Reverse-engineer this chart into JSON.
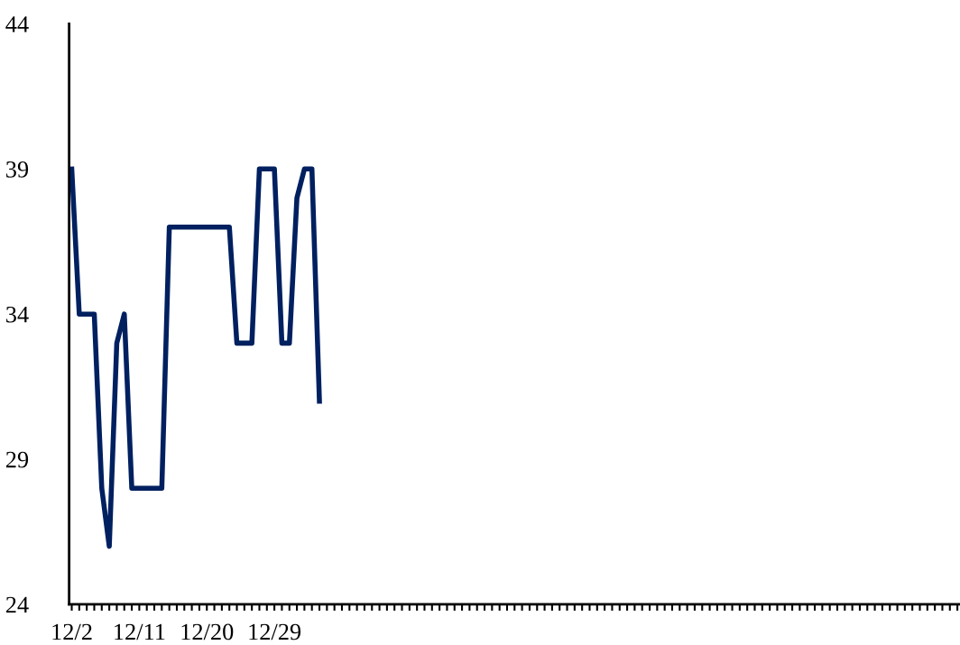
{
  "chart_data": {
    "type": "line",
    "categories": [
      "12/2",
      null,
      null,
      null,
      null,
      null,
      null,
      null,
      null,
      "12/11",
      null,
      null,
      null,
      null,
      null,
      null,
      null,
      null,
      "12/20",
      null,
      null,
      null,
      null,
      null,
      null,
      null,
      null,
      "12/29",
      null,
      null,
      null,
      null,
      null,
      null,
      null,
      null,
      null,
      null,
      null,
      null,
      null,
      null,
      null,
      null,
      null,
      null,
      null,
      null,
      null,
      null,
      null,
      null,
      null,
      null,
      null,
      null,
      null,
      null,
      null,
      null,
      null,
      null,
      null,
      null,
      null,
      null,
      null,
      null,
      null,
      null,
      null,
      null,
      null,
      null,
      null,
      null,
      null,
      null,
      null,
      null,
      null,
      null,
      null,
      null,
      null,
      null,
      null,
      null,
      null,
      null,
      null,
      null,
      null,
      null,
      null,
      null,
      null,
      null,
      null,
      null,
      null,
      null,
      null,
      null,
      null,
      null,
      null,
      null,
      null,
      null,
      null,
      null,
      null,
      null,
      null,
      null,
      null,
      null,
      null
    ],
    "series": [
      {
        "color": "#002060",
        "values": [
          39,
          34,
          34,
          34,
          28,
          26,
          33,
          34,
          28,
          28,
          28,
          28,
          28,
          37,
          37,
          37,
          37,
          37,
          37,
          37,
          37,
          37,
          33,
          33,
          33,
          39,
          39,
          39,
          33,
          33,
          38,
          39,
          39,
          31,
          null,
          null,
          null,
          null,
          null,
          null,
          null,
          null,
          null,
          null,
          null,
          null,
          null,
          null,
          null,
          null,
          null,
          null,
          null,
          null,
          null,
          null,
          null,
          null,
          null,
          null,
          null,
          null,
          null,
          null,
          null,
          null,
          null,
          null,
          null,
          null,
          null,
          null,
          null,
          null,
          null,
          null,
          null,
          null,
          null,
          null,
          null,
          null,
          null,
          null,
          null,
          null,
          null,
          null,
          null,
          null,
          null,
          null,
          null,
          null,
          null,
          null,
          null,
          null,
          null,
          null,
          null,
          null,
          null,
          null,
          null,
          null,
          null,
          null,
          null,
          null,
          null,
          null,
          null,
          null,
          null,
          null,
          null,
          null,
          null
        ]
      }
    ],
    "ylim": [
      24,
      44
    ],
    "yticks": [
      24,
      29,
      34,
      39,
      44
    ],
    "grid": false,
    "marker": "none",
    "line_style": "solid"
  }
}
